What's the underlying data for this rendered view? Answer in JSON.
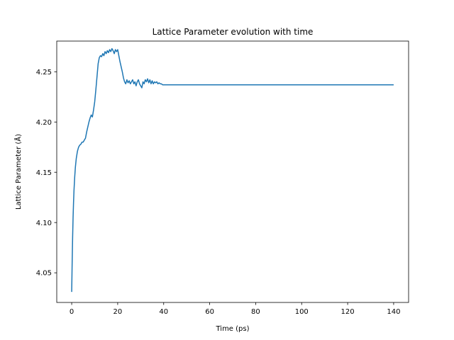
{
  "chart_data": {
    "type": "line",
    "title": "Lattice Parameter evolution with time",
    "xlabel": "Time (ps)",
    "ylabel": "Lattice Parameter (Å)",
    "xlim": [
      -6.5,
      146.5
    ],
    "ylim": [
      4.0205,
      4.2805
    ],
    "xticks": [
      0,
      20,
      40,
      60,
      80,
      100,
      120,
      140
    ],
    "yticks": [
      4.05,
      4.1,
      4.15,
      4.2,
      4.25
    ],
    "ytick_labels": [
      "4.05",
      "4.10",
      "4.15",
      "4.20",
      "4.25"
    ],
    "grid": false,
    "series": [
      {
        "color": "#1f77b4",
        "x": [
          0,
          0.2,
          0.4,
          0.6,
          0.8,
          1.0,
          1.3,
          1.6,
          2.0,
          2.5,
          3.0,
          3.5,
          4.0,
          4.5,
          5.0,
          5.5,
          6.0,
          6.5,
          7.0,
          7.5,
          8.0,
          8.5,
          9.0,
          9.5,
          10.0,
          10.5,
          11.0,
          11.5,
          12.0,
          12.5,
          13.0,
          13.5,
          14.0,
          14.5,
          15.0,
          15.5,
          16.0,
          16.5,
          17.0,
          17.5,
          18.0,
          18.5,
          19.0,
          19.5,
          20.0,
          20.5,
          21.0,
          21.5,
          22.0,
          22.5,
          23.0,
          23.5,
          24.0,
          24.5,
          25.0,
          25.5,
          26.0,
          26.5,
          27.0,
          27.5,
          28.0,
          28.5,
          29.0,
          29.5,
          30.0,
          30.5,
          31.0,
          31.5,
          32.0,
          32.5,
          33.0,
          33.5,
          34.0,
          34.5,
          35.0,
          35.5,
          36.0,
          36.5,
          37.0,
          37.5,
          38.0,
          38.5,
          39.0,
          39.5,
          40.0,
          50,
          60,
          70,
          80,
          90,
          100,
          110,
          120,
          130,
          140
        ],
        "values": [
          4.031,
          4.06,
          4.085,
          4.105,
          4.12,
          4.132,
          4.145,
          4.155,
          4.164,
          4.171,
          4.175,
          4.177,
          4.178,
          4.18,
          4.18,
          4.182,
          4.184,
          4.19,
          4.195,
          4.2,
          4.204,
          4.207,
          4.205,
          4.212,
          4.22,
          4.232,
          4.245,
          4.258,
          4.264,
          4.266,
          4.265,
          4.268,
          4.266,
          4.27,
          4.268,
          4.271,
          4.269,
          4.272,
          4.27,
          4.273,
          4.271,
          4.268,
          4.272,
          4.27,
          4.272,
          4.266,
          4.26,
          4.255,
          4.25,
          4.244,
          4.24,
          4.238,
          4.242,
          4.239,
          4.241,
          4.238,
          4.24,
          4.242,
          4.238,
          4.24,
          4.236,
          4.24,
          4.242,
          4.238,
          4.236,
          4.234,
          4.24,
          4.238,
          4.242,
          4.24,
          4.243,
          4.239,
          4.242,
          4.238,
          4.241,
          4.238,
          4.24,
          4.239,
          4.24,
          4.238,
          4.239,
          4.238,
          4.238,
          4.237,
          4.237,
          4.237,
          4.237,
          4.237,
          4.237,
          4.237,
          4.237,
          4.237,
          4.237,
          4.237,
          4.237
        ]
      }
    ]
  }
}
